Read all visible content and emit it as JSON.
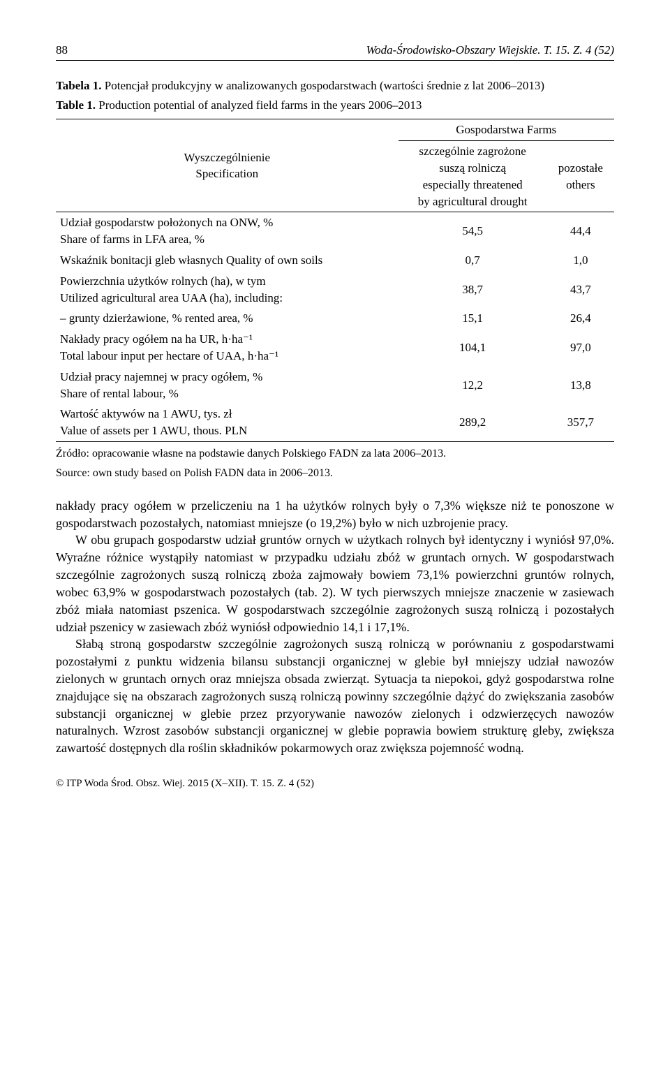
{
  "page_number": "88",
  "running_title": "Woda-Środowisko-Obszary Wiejskie. T. 15. Z. 4 (52)",
  "table": {
    "caption_pl_label": "Tabela 1.",
    "caption_pl_text": " Potencjał produkcyjny w analizowanych gospodarstwach (wartości średnie z lat 2006–2013)",
    "caption_en_label": "Table 1.",
    "caption_en_text": " Production potential of analyzed field farms in the years 2006–2013",
    "header": {
      "spec_pl": "Wyszczególnienie",
      "spec_en": "Specification",
      "group": "Gospodarstwa  Farms",
      "col1_l1": "szczególnie zagrożone",
      "col1_l2": "suszą rolniczą",
      "col1_l3": "especially threatened",
      "col1_l4": "by agricultural drought",
      "col2_l1": "pozostałe",
      "col2_l2": "others"
    },
    "rows": [
      {
        "label": "Udział gospodarstw położonych na ONW, %\nShare of farms in LFA area, %",
        "v1": "54,5",
        "v2": "44,4"
      },
      {
        "label": "Wskaźnik bonitacji gleb własnych  Quality of own soils",
        "v1": "0,7",
        "v2": "1,0"
      },
      {
        "label": "Powierzchnia użytków rolnych (ha), w tym\nUtilized agricultural area UAA (ha), including:",
        "v1": "38,7",
        "v2": "43,7"
      },
      {
        "label": "– grunty dzierżawione, %  rented area, %",
        "v1": "15,1",
        "v2": "26,4"
      },
      {
        "label": "Nakłady pracy ogółem na ha UR, h·ha⁻¹\nTotal labour input per hectare of UAA, h·ha⁻¹",
        "v1": "104,1",
        "v2": "97,0"
      },
      {
        "label": "Udział pracy najemnej w pracy ogółem, %\nShare of rental labour, %",
        "v1": "12,2",
        "v2": "13,8"
      },
      {
        "label": "Wartość aktywów na 1 AWU, tys. zł\nValue of assets per 1 AWU, thous. PLN",
        "v1": "289,2",
        "v2": "357,7"
      }
    ]
  },
  "source_pl": "Źródło: opracowanie własne na podstawie danych Polskiego FADN za lata 2006–2013.",
  "source_en": "Source: own study based on Polish FADN data in 2006–2013.",
  "body": {
    "p0": "nakłady pracy ogółem w przeliczeniu na 1 ha użytków rolnych były o 7,3% większe niż te ponoszone w gospodarstwach pozostałych, natomiast mniejsze (o 19,2%) było w nich uzbrojenie pracy.",
    "p1": "W obu grupach gospodarstw udział gruntów ornych w użytkach rolnych był identyczny i wyniósł 97,0%. Wyraźne różnice wystąpiły natomiast w przypadku udziału zbóż w gruntach ornych. W gospodarstwach szczególnie zagrożonych suszą rolniczą zboża zajmowały bowiem 73,1% powierzchni gruntów rolnych, wobec 63,9% w gospodarstwach pozostałych (tab. 2). W tych pierwszych mniejsze znaczenie w zasiewach zbóż miała natomiast pszenica. W gospodarstwach szczególnie zagrożonych suszą rolniczą i pozostałych udział pszenicy w zasiewach zbóż wyniósł odpowiednio 14,1 i 17,1%.",
    "p2": "Słabą stroną gospodarstw szczególnie zagrożonych suszą rolniczą w porównaniu z gospodarstwami pozostałymi z punktu widzenia bilansu substancji organicznej w glebie był mniejszy udział nawozów zielonych w gruntach ornych oraz mniejsza obsada zwierząt. Sytuacja ta niepokoi, gdyż gospodarstwa rolne znajdujące się na obszarach zagrożonych suszą rolniczą powinny szczególnie dążyć do zwiększania zasobów substancji organicznej w glebie przez przyorywanie nawozów zielonych i odzwierzęcych nawozów naturalnych. Wzrost zasobów substancji organicznej w glebie poprawia bowiem strukturę gleby, zwiększa zawartość dostępnych dla roślin składników pokarmowych oraz zwiększa pojemność wodną."
  },
  "footer": "© ITP Woda Środ. Obsz. Wiej. 2015 (X–XII). T. 15. Z. 4 (52)"
}
